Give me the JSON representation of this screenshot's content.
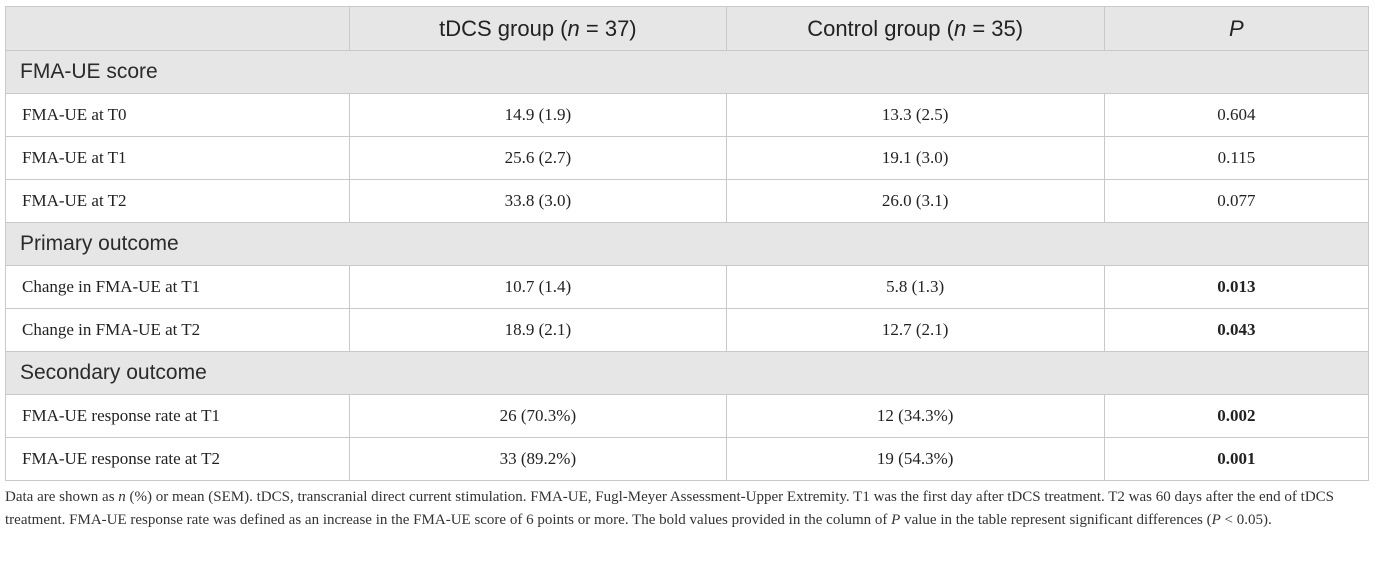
{
  "header": {
    "col1": "",
    "col2_pre": "tDCS group (",
    "col2_n": "n",
    "col2_post": " = 37)",
    "col3_pre": "Control group (",
    "col3_n": "n",
    "col3_post": " = 35)",
    "col4": "P"
  },
  "sections": [
    {
      "title": "FMA-UE score",
      "rows": [
        {
          "label": "FMA-UE at T0",
          "tdcs": "14.9 (1.9)",
          "control": "13.3 (2.5)",
          "p": "0.604",
          "significant": false
        },
        {
          "label": "FMA-UE at T1",
          "tdcs": "25.6 (2.7)",
          "control": "19.1 (3.0)",
          "p": "0.115",
          "significant": false
        },
        {
          "label": "FMA-UE at T2",
          "tdcs": "33.8 (3.0)",
          "control": "26.0 (3.1)",
          "p": "0.077",
          "significant": false
        }
      ]
    },
    {
      "title": "Primary outcome",
      "rows": [
        {
          "label": "Change in FMA-UE at T1",
          "tdcs": "10.7 (1.4)",
          "control": "5.8 (1.3)",
          "p": "0.013",
          "significant": true
        },
        {
          "label": "Change in FMA-UE at T2",
          "tdcs": "18.9 (2.1)",
          "control": "12.7 (2.1)",
          "p": "0.043",
          "significant": true
        }
      ]
    },
    {
      "title": "Secondary outcome",
      "rows": [
        {
          "label": "FMA-UE response rate at T1",
          "tdcs": "26 (70.3%)",
          "control": "12 (34.3%)",
          "p": "0.002",
          "significant": true
        },
        {
          "label": "FMA-UE response rate at T2",
          "tdcs": "33 (89.2%)",
          "control": "19 (54.3%)",
          "p": "0.001",
          "significant": true
        }
      ]
    }
  ],
  "footnote": {
    "part1": "Data are shown as ",
    "n": "n",
    "part2": " (%) or mean (SEM). tDCS, transcranial direct current stimulation. FMA-UE, Fugl-Meyer Assessment-Upper Extremity. T1 was the first day after tDCS treatment. T2 was 60 days after the end of tDCS treatment. FMA-UE response rate was defined as an increase in the FMA-UE score of 6 points or more. The bold values provided in the column of ",
    "p1": "P",
    "part3": " value in the table represent significant differences (",
    "p2": "P",
    "part4": " < 0.05)."
  }
}
